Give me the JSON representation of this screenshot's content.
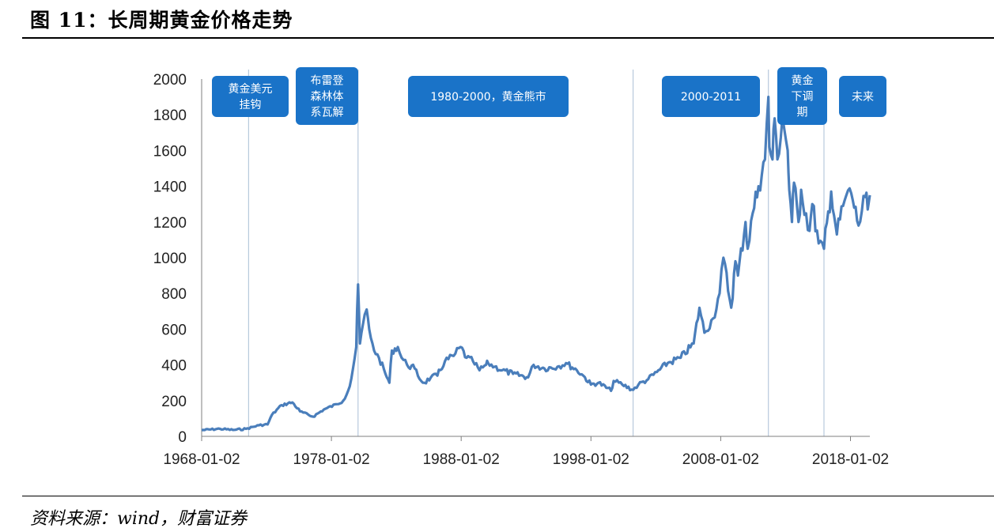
{
  "figure": {
    "title": "图 11：长周期黄金价格走势",
    "source": "资料来源：wind，财富证券"
  },
  "colors": {
    "line": "#4a7ebb",
    "box": "#1a73c8",
    "divider": "#b8c9dc",
    "axis": "#7f7f7f"
  },
  "chart_data": {
    "type": "line",
    "title": "",
    "xlabel": "",
    "ylabel": "",
    "ylim": [
      0,
      2000
    ],
    "yticks": [
      0,
      200,
      400,
      600,
      800,
      1000,
      1200,
      1400,
      1600,
      1800,
      2000
    ],
    "xlim": [
      "1968-01-02",
      "2019-06-30"
    ],
    "xticks": [
      "1968-01-02",
      "1978-01-02",
      "1988-01-02",
      "1998-01-02",
      "2008-01-02",
      "2018-01-02"
    ],
    "grid": false,
    "legend": "none",
    "series": [
      {
        "x": [
          "1968-01-02",
          "1969-06-01",
          "1970-06-01",
          "1971-06-01",
          "1972-06-01",
          "1973-02-01",
          "1973-06-01",
          "1974-03-01",
          "1974-12-30",
          "1975-08-01",
          "1976-08-01",
          "1977-06-01",
          "1978-06-01",
          "1978-12-01",
          "1979-06-01",
          "1979-09-01",
          "1979-12-01",
          "1980-01-21",
          "1980-03-15",
          "1980-06-01",
          "1980-09-20",
          "1980-12-01",
          "1981-03-01",
          "1981-06-01",
          "1981-09-01",
          "1982-03-01",
          "1982-06-21",
          "1982-09-01",
          "1983-02-15",
          "1983-06-01",
          "1983-11-01",
          "1984-06-01",
          "1984-12-01",
          "1985-03-01",
          "1985-09-01",
          "1986-03-01",
          "1986-10-01",
          "1987-06-01",
          "1987-12-14",
          "1988-06-01",
          "1988-12-01",
          "1989-06-01",
          "1989-12-01",
          "1990-02-01",
          "1990-08-01",
          "1991-03-01",
          "1992-01-01",
          "1993-03-01",
          "1993-08-01",
          "1994-06-01",
          "1995-06-01",
          "1996-02-01",
          "1996-12-01",
          "1997-06-01",
          "1998-01-01",
          "1998-08-01",
          "1999-07-20",
          "1999-10-01",
          "2000-06-01",
          "2001-04-01",
          "2001-09-01",
          "2002-06-01",
          "2003-02-01",
          "2003-12-01",
          "2004-12-01",
          "2005-12-01",
          "2006-05-12",
          "2006-10-01",
          "2007-06-01",
          "2007-12-01",
          "2008-03-17",
          "2008-10-24",
          "2009-02-20",
          "2009-05-01",
          "2009-12-02",
          "2010-02-01",
          "2010-06-21",
          "2010-12-01",
          "2011-06-01",
          "2011-09-05",
          "2011-10-01",
          "2011-12-29",
          "2012-02-29",
          "2012-05-16",
          "2012-10-05",
          "2013-03-01",
          "2013-04-15",
          "2013-06-28",
          "2013-08-27",
          "2013-12-31",
          "2014-03-14",
          "2014-11-05",
          "2015-01-22",
          "2015-07-20",
          "2015-12-17",
          "2016-07-06",
          "2016-12-15",
          "2017-06-06",
          "2017-09-08",
          "2018-01-25",
          "2018-08-16",
          "2019-02-20",
          "2019-05-01",
          "2019-06-30"
        ],
        "y": [
          35,
          42,
          36,
          42,
          62,
          67,
          120,
          175,
          190,
          140,
          110,
          150,
          180,
          200,
          280,
          380,
          500,
          850,
          520,
          620,
          710,
          600,
          520,
          460,
          440,
          350,
          300,
          480,
          500,
          440,
          400,
          380,
          310,
          300,
          330,
          340,
          420,
          450,
          500,
          440,
          420,
          370,
          400,
          410,
          390,
          370,
          350,
          330,
          400,
          380,
          390,
          410,
          370,
          340,
          290,
          300,
          255,
          310,
          290,
          260,
          290,
          320,
          360,
          410,
          440,
          520,
          720,
          580,
          660,
          800,
          1000,
          720,
          980,
          900,
          1200,
          1050,
          1250,
          1400,
          1550,
          1900,
          1620,
          1550,
          1780,
          1550,
          1790,
          1600,
          1380,
          1200,
          1420,
          1200,
          1380,
          1150,
          1300,
          1080,
          1050,
          1370,
          1130,
          1290,
          1350,
          1360,
          1180,
          1340,
          1270,
          1350
        ]
      }
    ],
    "annotations": [
      {
        "lines": [
          "黄金美元",
          "挂钩"
        ]
      },
      {
        "lines": [
          "布雷登",
          "森林体",
          "系瓦解"
        ]
      },
      {
        "lines": [
          "1980-2000，黄金熊市"
        ]
      },
      {
        "lines": [
          "2000-2011"
        ]
      },
      {
        "lines": [
          "黄金",
          "下调",
          "期"
        ]
      },
      {
        "lines": [
          "未来"
        ]
      }
    ],
    "dividers": [
      "1971-08-15",
      "1980-01-21",
      "2001-04-01",
      "2011-09-05",
      "2015-12-17"
    ]
  }
}
